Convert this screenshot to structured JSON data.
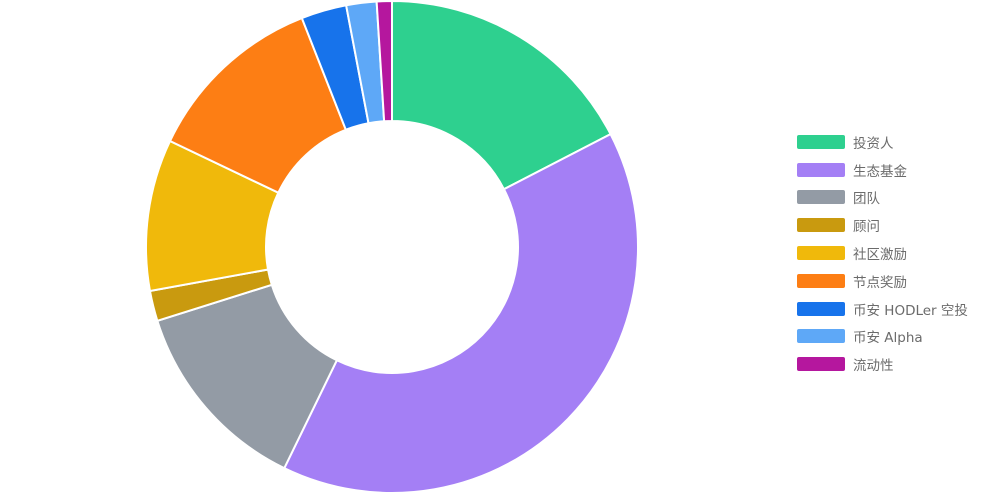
{
  "chart_data": {
    "type": "pie",
    "variant": "donut",
    "legend_position": "right",
    "categories": [
      "投资人",
      "生态基金",
      "团队",
      "顾问",
      "社区激励",
      "节点奖励",
      "币安 HODLer 空投",
      "币安 Alpha",
      "流动性"
    ],
    "values": [
      17.5,
      40,
      13,
      2,
      10,
      12,
      3,
      2,
      1
    ],
    "colors": [
      "#2ed08f",
      "#a47ff5",
      "#939ba5",
      "#c99a0f",
      "#f0b90b",
      "#fd7e14",
      "#1773eb",
      "#5ea8f7",
      "#b5179e"
    ]
  }
}
